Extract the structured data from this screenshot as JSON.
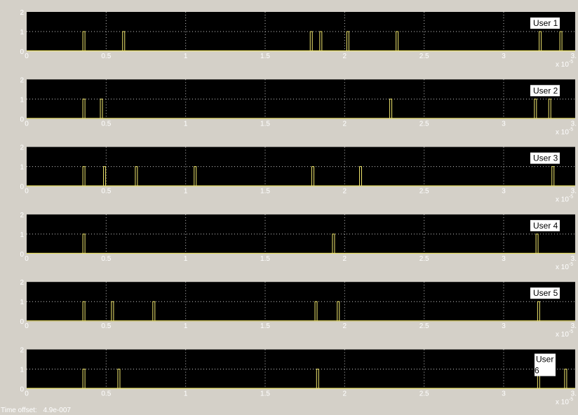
{
  "time_offset_label": "Time offset:",
  "time_offset_value": "4.9e-007",
  "colors": {
    "background": "#000000",
    "frame": "#d4d0c8",
    "grid": "#c8c8c8",
    "trace": "#f0e66e",
    "text": "#ffffff",
    "legend_bg": "#ffffff"
  },
  "chart_data": [
    {
      "type": "line",
      "legend": "User 1",
      "x_ticks": [
        "0",
        "0.5",
        "1",
        "1.5",
        "2",
        "2.5",
        "3",
        "3."
      ],
      "y_ticks": [
        "0",
        "1",
        "2"
      ],
      "x_exponent_base": "x 10",
      "x_exponent": "-5",
      "xlim": [
        0,
        3.45
      ],
      "ylim": [
        0,
        2
      ],
      "grid": true,
      "pulse_times": [
        0.36,
        0.61,
        1.79,
        1.85,
        2.02,
        2.33,
        3.23,
        3.36
      ],
      "pulse_height": 1
    },
    {
      "type": "line",
      "legend": "User 2",
      "x_ticks": [
        "0",
        "0.5",
        "1",
        "1.5",
        "2",
        "2.5",
        "3",
        "3."
      ],
      "y_ticks": [
        "0",
        "1",
        "2"
      ],
      "x_exponent_base": "x 10",
      "x_exponent": "-5",
      "xlim": [
        0,
        3.45
      ],
      "ylim": [
        0,
        2
      ],
      "grid": true,
      "pulse_times": [
        0.36,
        0.47,
        2.29,
        3.2,
        3.29
      ],
      "pulse_height": 1
    },
    {
      "type": "line",
      "legend": "User 3",
      "x_ticks": [
        "0",
        "0.5",
        "1",
        "1.5",
        "2",
        "2.5",
        "3",
        "3."
      ],
      "y_ticks": [
        "0",
        "1",
        "2"
      ],
      "x_exponent_base": "x 10",
      "x_exponent": "-5",
      "xlim": [
        0,
        3.45
      ],
      "ylim": [
        0,
        2
      ],
      "grid": true,
      "pulse_times": [
        0.36,
        0.49,
        0.69,
        1.06,
        1.8,
        2.1,
        3.31
      ],
      "pulse_height": 1
    },
    {
      "type": "line",
      "legend": "User 4",
      "x_ticks": [
        "0",
        "0.5",
        "1",
        "1.5",
        "2",
        "2.5",
        "3",
        "3."
      ],
      "y_ticks": [
        "0",
        "1",
        "2"
      ],
      "x_exponent_base": "x 10",
      "x_exponent": "-5",
      "xlim": [
        0,
        3.45
      ],
      "ylim": [
        0,
        2
      ],
      "grid": true,
      "pulse_times": [
        0.36,
        1.93,
        3.21
      ],
      "pulse_height": 1
    },
    {
      "type": "line",
      "legend": "User 5",
      "x_ticks": [
        "0",
        "0.5",
        "1",
        "1.5",
        "2",
        "2.5",
        "3",
        "3."
      ],
      "y_ticks": [
        "0",
        "1",
        "2"
      ],
      "x_exponent_base": "x 10",
      "x_exponent": "-5",
      "xlim": [
        0,
        3.45
      ],
      "ylim": [
        0,
        2
      ],
      "grid": true,
      "pulse_times": [
        0.36,
        0.54,
        0.8,
        1.82,
        1.96,
        3.22
      ],
      "pulse_height": 1
    },
    {
      "type": "line",
      "legend": "User 6",
      "x_ticks": [
        "0",
        "0.5",
        "1",
        "1.5",
        "2",
        "2.5",
        "3",
        "3."
      ],
      "y_ticks": [
        "0",
        "1",
        "2"
      ],
      "x_exponent_base": "x 10",
      "x_exponent": "-5",
      "xlim": [
        0,
        3.45
      ],
      "ylim": [
        0,
        2
      ],
      "grid": true,
      "pulse_times": [
        0.36,
        0.58,
        1.83,
        3.22,
        3.39
      ],
      "pulse_height": 1
    }
  ]
}
